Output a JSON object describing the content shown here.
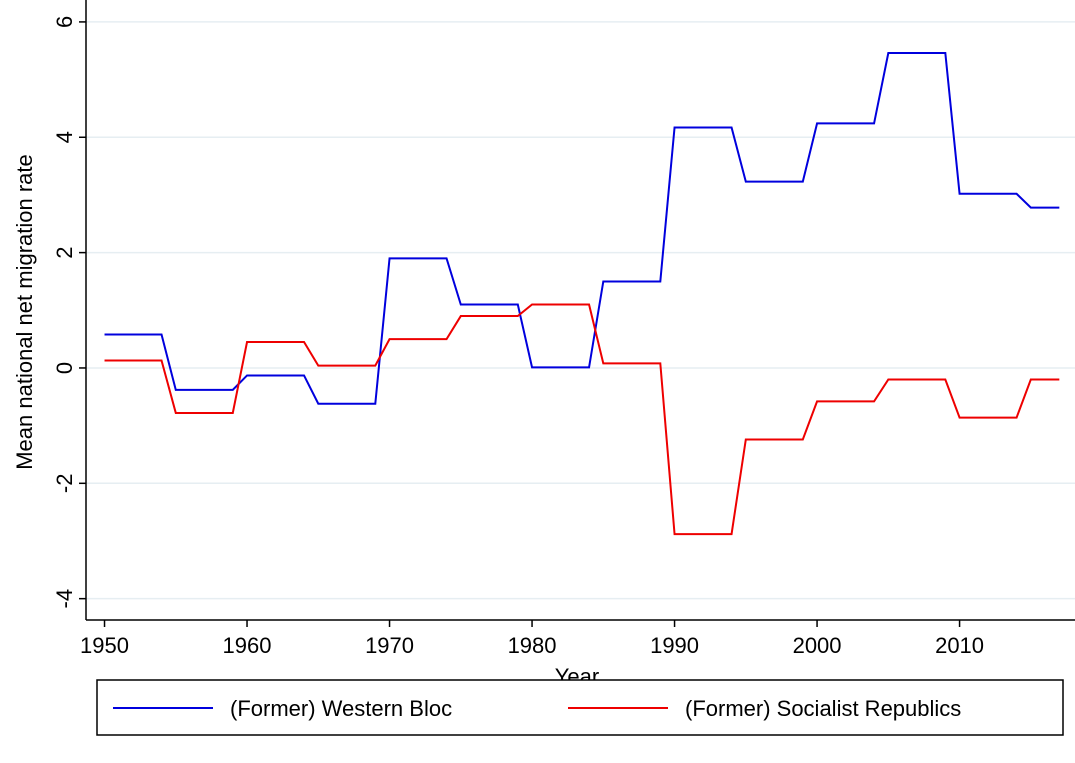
{
  "chart_data": {
    "type": "line",
    "x_label": "Year",
    "y_label": "Mean national net migration rate",
    "x": [
      1950,
      1951,
      1952,
      1953,
      1954,
      1955,
      1956,
      1957,
      1958,
      1959,
      1960,
      1961,
      1962,
      1963,
      1964,
      1965,
      1966,
      1967,
      1968,
      1969,
      1970,
      1971,
      1972,
      1973,
      1974,
      1975,
      1976,
      1977,
      1978,
      1979,
      1980,
      1981,
      1982,
      1983,
      1984,
      1985,
      1986,
      1987,
      1988,
      1989,
      1990,
      1991,
      1992,
      1993,
      1994,
      1995,
      1996,
      1997,
      1998,
      1999,
      2000,
      2001,
      2002,
      2003,
      2004,
      2005,
      2006,
      2007,
      2008,
      2009,
      2010,
      2011,
      2012,
      2013,
      2014,
      2015,
      2016,
      2017
    ],
    "series": [
      {
        "name": "(Former) Western Bloc",
        "color": "#0000dd",
        "values": [
          0.58,
          0.58,
          0.58,
          0.58,
          0.58,
          -0.38,
          -0.38,
          -0.38,
          -0.38,
          -0.38,
          -0.13,
          -0.13,
          -0.13,
          -0.13,
          -0.13,
          -0.62,
          -0.62,
          -0.62,
          -0.62,
          -0.62,
          1.9,
          1.9,
          1.9,
          1.9,
          1.9,
          1.1,
          1.1,
          1.1,
          1.1,
          1.1,
          0.01,
          0.01,
          0.01,
          0.01,
          0.01,
          1.5,
          1.5,
          1.5,
          1.5,
          1.5,
          4.17,
          4.17,
          4.17,
          4.17,
          4.17,
          3.23,
          3.23,
          3.23,
          3.23,
          3.23,
          4.24,
          4.24,
          4.24,
          4.24,
          4.24,
          5.46,
          5.46,
          5.46,
          5.46,
          5.46,
          3.02,
          3.02,
          3.02,
          3.02,
          3.02,
          2.78,
          2.78,
          2.78
        ]
      },
      {
        "name": "(Former) Socialist Republics",
        "color": "#ee0000",
        "values": [
          0.13,
          0.13,
          0.13,
          0.13,
          0.13,
          -0.78,
          -0.78,
          -0.78,
          -0.78,
          -0.78,
          0.45,
          0.45,
          0.45,
          0.45,
          0.45,
          0.04,
          0.04,
          0.04,
          0.04,
          0.04,
          0.5,
          0.5,
          0.5,
          0.5,
          0.5,
          0.9,
          0.9,
          0.9,
          0.9,
          0.9,
          1.1,
          1.1,
          1.1,
          1.1,
          1.1,
          0.08,
          0.08,
          0.08,
          0.08,
          0.08,
          -2.88,
          -2.88,
          -2.88,
          -2.88,
          -2.88,
          -1.24,
          -1.24,
          -1.24,
          -1.24,
          -1.24,
          -0.58,
          -0.58,
          -0.58,
          -0.58,
          -0.58,
          -0.2,
          -0.2,
          -0.2,
          -0.2,
          -0.2,
          -0.86,
          -0.86,
          -0.86,
          -0.86,
          -0.86,
          -0.2,
          -0.2,
          -0.2
        ]
      }
    ],
    "xlim": [
      1948.7,
      2018.1
    ],
    "xticks": [
      1950,
      1960,
      1970,
      1980,
      1990,
      2000,
      2010
    ],
    "ylim": [
      -4.37,
      6.38
    ],
    "yticks": [
      -4,
      -2,
      0,
      2,
      4,
      6
    ],
    "grid": true,
    "legend": "bottom"
  }
}
